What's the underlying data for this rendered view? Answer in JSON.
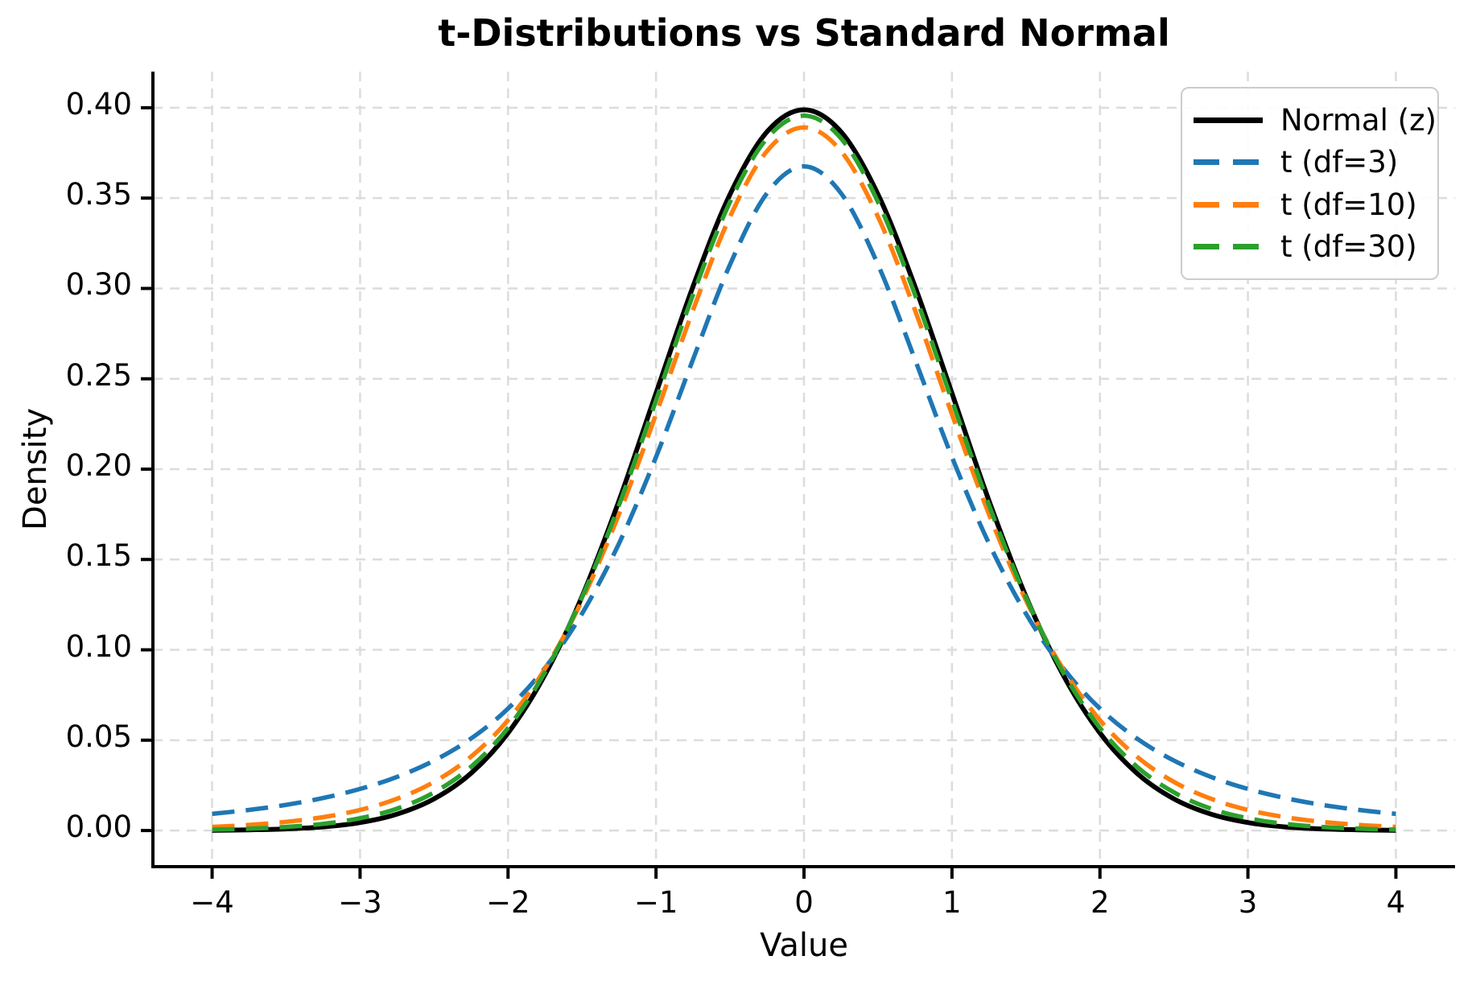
{
  "chart_data": {
    "type": "line",
    "title": "t-Distributions vs Standard Normal",
    "xlabel": "Value",
    "ylabel": "Density",
    "xlim": [
      -4.4,
      4.4
    ],
    "ylim": [
      -0.02,
      0.42
    ],
    "grid": true,
    "grid_color": "#dcdcdc",
    "background_color": "#ffffff",
    "legend_position": "upper right",
    "x_ticks": [
      -4,
      -3,
      -2,
      -1,
      0,
      1,
      2,
      3,
      4
    ],
    "x_tick_labels": [
      "−4",
      "−3",
      "−2",
      "−1",
      "0",
      "1",
      "2",
      "3",
      "4"
    ],
    "y_ticks": [
      0.0,
      0.05,
      0.1,
      0.15,
      0.2,
      0.25,
      0.3,
      0.35,
      0.4
    ],
    "y_tick_labels": [
      "0.00",
      "0.05",
      "0.10",
      "0.15",
      "0.20",
      "0.25",
      "0.30",
      "0.35",
      "0.40"
    ],
    "x_values": [
      -4,
      -3.75,
      -3.5,
      -3.25,
      -3,
      -2.75,
      -2.5,
      -2.25,
      -2,
      -1.75,
      -1.5,
      -1.25,
      -1,
      -0.75,
      -0.5,
      -0.25,
      0,
      0.25,
      0.5,
      0.75,
      1,
      1.25,
      1.5,
      1.75,
      2,
      2.25,
      2.5,
      2.75,
      3,
      3.25,
      3.5,
      3.75,
      4
    ],
    "series": [
      {
        "name": "Normal (z)",
        "color": "#000000",
        "style": "solid",
        "peak": 0.3989,
        "values": [
          0.0001,
          0.0004,
          0.0009,
          0.002,
          0.0044,
          0.0091,
          0.0175,
          0.0317,
          0.054,
          0.0863,
          0.1295,
          0.1826,
          0.242,
          0.3011,
          0.3521,
          0.3867,
          0.3989,
          0.3867,
          0.3521,
          0.3011,
          0.242,
          0.1826,
          0.1295,
          0.0863,
          0.054,
          0.0317,
          0.0175,
          0.0091,
          0.0044,
          0.002,
          0.0009,
          0.0004,
          0.0001
        ]
      },
      {
        "name": "t (df=3)",
        "color": "#1f77b4",
        "style": "dashed",
        "peak": 0.3676,
        "values": [
          0.0092,
          0.0114,
          0.0142,
          0.018,
          0.023,
          0.0297,
          0.0387,
          0.0509,
          0.0675,
          0.09,
          0.12,
          0.1589,
          0.2067,
          0.2607,
          0.3132,
          0.3527,
          0.3676,
          0.3527,
          0.3132,
          0.2607,
          0.2067,
          0.1589,
          0.12,
          0.09,
          0.0675,
          0.0509,
          0.0387,
          0.0297,
          0.023,
          0.018,
          0.0142,
          0.0114,
          0.0092
        ]
      },
      {
        "name": "t (df=10)",
        "color": "#ff7f0e",
        "style": "dashed",
        "peak": 0.3891,
        "values": [
          0.002,
          0.0031,
          0.0048,
          0.0074,
          0.0114,
          0.0176,
          0.0269,
          0.0409,
          0.0611,
          0.0895,
          0.1274,
          0.1751,
          0.2303,
          0.288,
          0.3397,
          0.376,
          0.3891,
          0.376,
          0.3397,
          0.288,
          0.2303,
          0.1751,
          0.1274,
          0.0895,
          0.0611,
          0.0409,
          0.0269,
          0.0176,
          0.0114,
          0.0074,
          0.0048,
          0.0031,
          0.002
        ]
      },
      {
        "name": "t (df=30)",
        "color": "#2ca02c",
        "style": "dashed",
        "peak": 0.3956,
        "values": [
          0.0005,
          0.001,
          0.002,
          0.0037,
          0.0068,
          0.0121,
          0.0211,
          0.0353,
          0.0568,
          0.0877,
          0.129,
          0.1801,
          0.238,
          0.2966,
          0.3479,
          0.3831,
          0.3956,
          0.3831,
          0.3479,
          0.2966,
          0.238,
          0.1801,
          0.129,
          0.0877,
          0.0568,
          0.0353,
          0.0211,
          0.0121,
          0.0068,
          0.0037,
          0.002,
          0.001,
          0.0005
        ]
      }
    ]
  }
}
